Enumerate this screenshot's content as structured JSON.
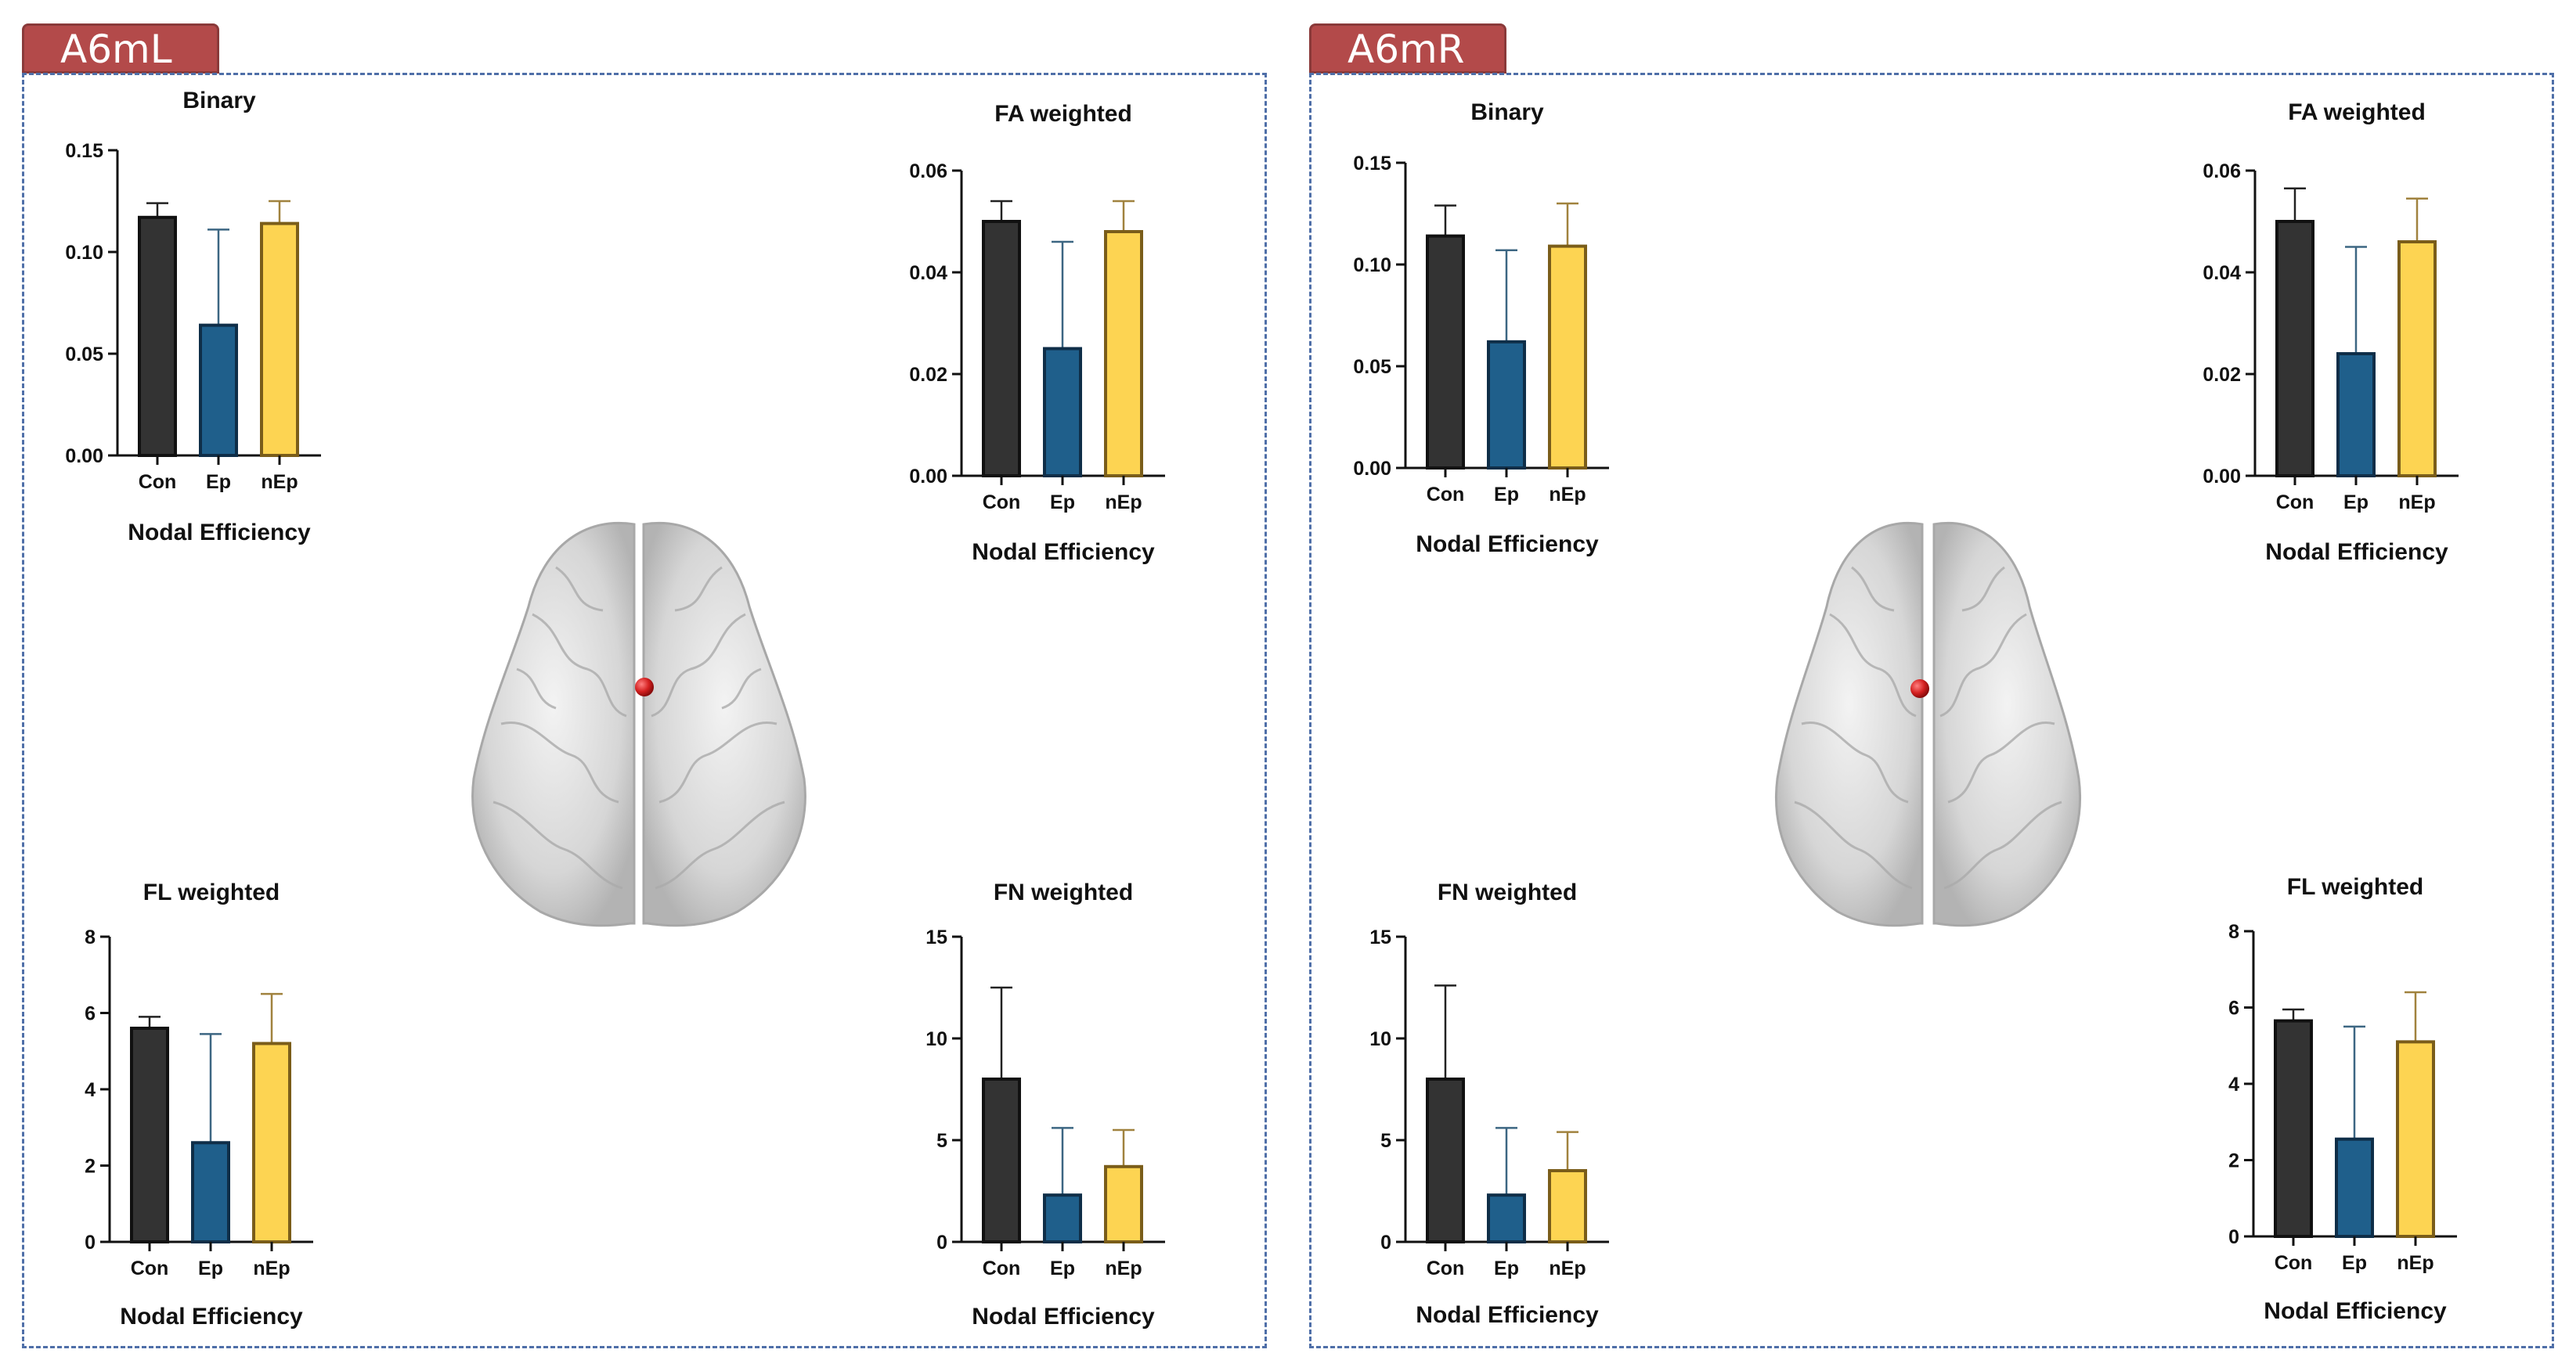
{
  "panels": [
    {
      "label": "A6mL",
      "tag_color": "#b34a4a"
    },
    {
      "label": "A6mR",
      "tag_color": "#b34a4a"
    }
  ],
  "colors": {
    "Con": "#333333",
    "Ep": "#1f5f8b",
    "nEp": "#fdd452",
    "frame": "#4f6fa8",
    "node": "#d42020"
  },
  "chart_data": [
    {
      "id": "L-binary",
      "panel": "A6mL",
      "type": "bar",
      "title": "Binary",
      "xlabel": "Nodal Efficiency",
      "categories": [
        "Con",
        "Ep",
        "nEp"
      ],
      "values": [
        0.117,
        0.064,
        0.114
      ],
      "errors": [
        0.007,
        0.047,
        0.011
      ],
      "ylim": [
        0,
        0.15
      ],
      "yticks": [
        "0.00",
        "0.05",
        "0.10",
        "0.15"
      ]
    },
    {
      "id": "L-fa",
      "panel": "A6mL",
      "type": "bar",
      "title": "FA weighted",
      "xlabel": "Nodal Efficiency",
      "categories": [
        "Con",
        "Ep",
        "nEp"
      ],
      "values": [
        0.05,
        0.025,
        0.048
      ],
      "errors": [
        0.004,
        0.021,
        0.006
      ],
      "ylim": [
        0,
        0.06
      ],
      "yticks": [
        "0.00",
        "0.02",
        "0.04",
        "0.06"
      ]
    },
    {
      "id": "L-fl",
      "panel": "A6mL",
      "type": "bar",
      "title": "FL weighted",
      "xlabel": "Nodal Efficiency",
      "categories": [
        "Con",
        "Ep",
        "nEp"
      ],
      "values": [
        5.6,
        2.6,
        5.2
      ],
      "errors": [
        0.3,
        2.85,
        1.3
      ],
      "ylim": [
        0,
        8
      ],
      "yticks": [
        "0",
        "2",
        "4",
        "6",
        "8"
      ]
    },
    {
      "id": "L-fn",
      "panel": "A6mL",
      "type": "bar",
      "title": "FN weighted",
      "xlabel": "Nodal Efficiency",
      "categories": [
        "Con",
        "Ep",
        "nEp"
      ],
      "values": [
        8.0,
        2.3,
        3.7
      ],
      "errors": [
        4.5,
        3.3,
        1.8
      ],
      "ylim": [
        0,
        15
      ],
      "yticks": [
        "0",
        "5",
        "10",
        "15"
      ]
    },
    {
      "id": "R-binary",
      "panel": "A6mR",
      "type": "bar",
      "title": "Binary",
      "xlabel": "Nodal Efficiency",
      "categories": [
        "Con",
        "Ep",
        "nEp"
      ],
      "values": [
        0.114,
        0.062,
        0.109
      ],
      "errors": [
        0.015,
        0.045,
        0.021
      ],
      "ylim": [
        0,
        0.15
      ],
      "yticks": [
        "0.00",
        "0.05",
        "0.10",
        "0.15"
      ]
    },
    {
      "id": "R-fa",
      "panel": "A6mR",
      "type": "bar",
      "title": "FA weighted",
      "xlabel": "Nodal Efficiency",
      "categories": [
        "Con",
        "Ep",
        "nEp"
      ],
      "values": [
        0.05,
        0.024,
        0.046
      ],
      "errors": [
        0.0065,
        0.021,
        0.0085
      ],
      "ylim": [
        0,
        0.06
      ],
      "yticks": [
        "0.00",
        "0.02",
        "0.04",
        "0.06"
      ]
    },
    {
      "id": "R-fn",
      "panel": "A6mR",
      "type": "bar",
      "title": "FN weighted",
      "xlabel": "Nodal Efficiency",
      "categories": [
        "Con",
        "Ep",
        "nEp"
      ],
      "values": [
        8.0,
        2.3,
        3.5
      ],
      "errors": [
        4.6,
        3.3,
        1.9
      ],
      "ylim": [
        0,
        15
      ],
      "yticks": [
        "0",
        "5",
        "10",
        "15"
      ]
    },
    {
      "id": "R-fl",
      "panel": "A6mR",
      "type": "bar",
      "title": "FL weighted",
      "xlabel": "Nodal Efficiency",
      "categories": [
        "Con",
        "Ep",
        "nEp"
      ],
      "values": [
        5.65,
        2.55,
        5.1
      ],
      "errors": [
        0.3,
        2.95,
        1.3
      ],
      "ylim": [
        0,
        8
      ],
      "yticks": [
        "0",
        "2",
        "4",
        "6",
        "8"
      ]
    }
  ]
}
